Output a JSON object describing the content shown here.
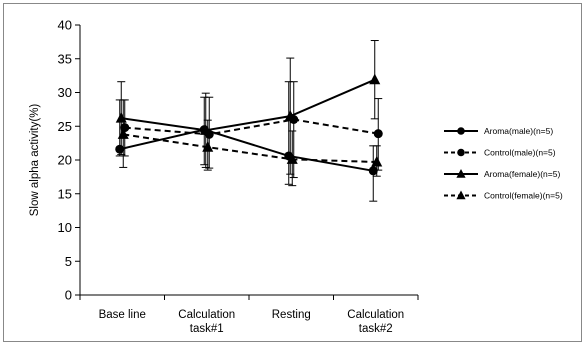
{
  "chart_data": {
    "type": "line",
    "title": "",
    "xlabel": "",
    "ylabel": "Slow alpha activity(%)",
    "ylim": [
      0,
      40
    ],
    "yticks": [
      0,
      5,
      10,
      15,
      20,
      25,
      30,
      35,
      40
    ],
    "categories": [
      [
        "Base line"
      ],
      [
        "Calculation",
        "task#1"
      ],
      [
        "Resting"
      ],
      [
        "Calculation",
        "task#2"
      ]
    ],
    "grid": false,
    "legend_position": "right",
    "series": [
      {
        "name": "Aroma(male)(n=5)",
        "marker": "circle",
        "line": "solid",
        "values": [
          21.6,
          24.5,
          20.6,
          18.4
        ],
        "error_upper": [
          28.9,
          29.3,
          31.6,
          22.1
        ],
        "error_lower": [
          20.6,
          19.3,
          16.4,
          13.9
        ]
      },
      {
        "name": "Control(male)(n=5)",
        "marker": "circle",
        "line": "dashed",
        "values": [
          24.8,
          23.8,
          26.0,
          23.9
        ],
        "error_upper": [
          28.9,
          29.3,
          31.6,
          29.1
        ],
        "error_lower": [
          20.6,
          18.8,
          17.4,
          18.5
        ]
      },
      {
        "name": "Aroma(female)(n=5)",
        "marker": "triangle",
        "line": "solid",
        "values": [
          26.2,
          24.4,
          26.5,
          31.9
        ],
        "error_upper": [
          31.6,
          29.9,
          35.1,
          37.7
        ],
        "error_lower": [
          20.8,
          18.9,
          17.9,
          26.1
        ]
      },
      {
        "name": "Control(female)(n=5)",
        "marker": "triangle",
        "line": "dashed",
        "values": [
          23.8,
          21.9,
          20.1,
          19.7
        ],
        "error_upper": [
          28.9,
          25.9,
          24.3,
          22.1
        ],
        "error_lower": [
          18.9,
          18.5,
          16.2,
          17.6
        ]
      }
    ],
    "colors": {
      "line": "#000000",
      "frame": "#888888",
      "background": "#ffffff"
    }
  }
}
